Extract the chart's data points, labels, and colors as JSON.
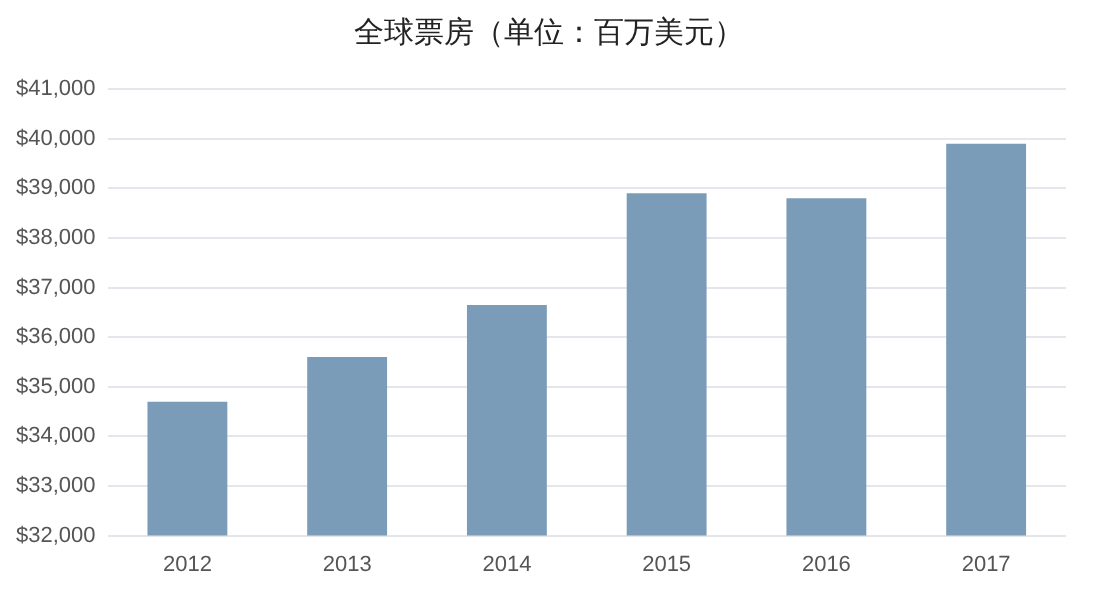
{
  "chart_data": {
    "type": "bar",
    "title": "全球票房（单位：百万美元）",
    "categories": [
      "2012",
      "2013",
      "2014",
      "2015",
      "2016",
      "2017"
    ],
    "values": [
      34700,
      35600,
      36650,
      38900,
      38800,
      39900
    ],
    "color": "#7a9cb8",
    "ylim": [
      32000,
      41000
    ],
    "yticks": [
      {
        "value": 32000,
        "label": "$32,000"
      },
      {
        "value": 33000,
        "label": "$33,000"
      },
      {
        "value": 34000,
        "label": "$34,000"
      },
      {
        "value": 35000,
        "label": "$35,000"
      },
      {
        "value": 36000,
        "label": "$36,000"
      },
      {
        "value": 37000,
        "label": "$37,000"
      },
      {
        "value": 38000,
        "label": "$38,000"
      },
      {
        "value": 39000,
        "label": "$39,000"
      },
      {
        "value": 40000,
        "label": "$40,000"
      },
      {
        "value": 41000,
        "label": "$41,000"
      }
    ],
    "grid": "y",
    "legend": false
  }
}
